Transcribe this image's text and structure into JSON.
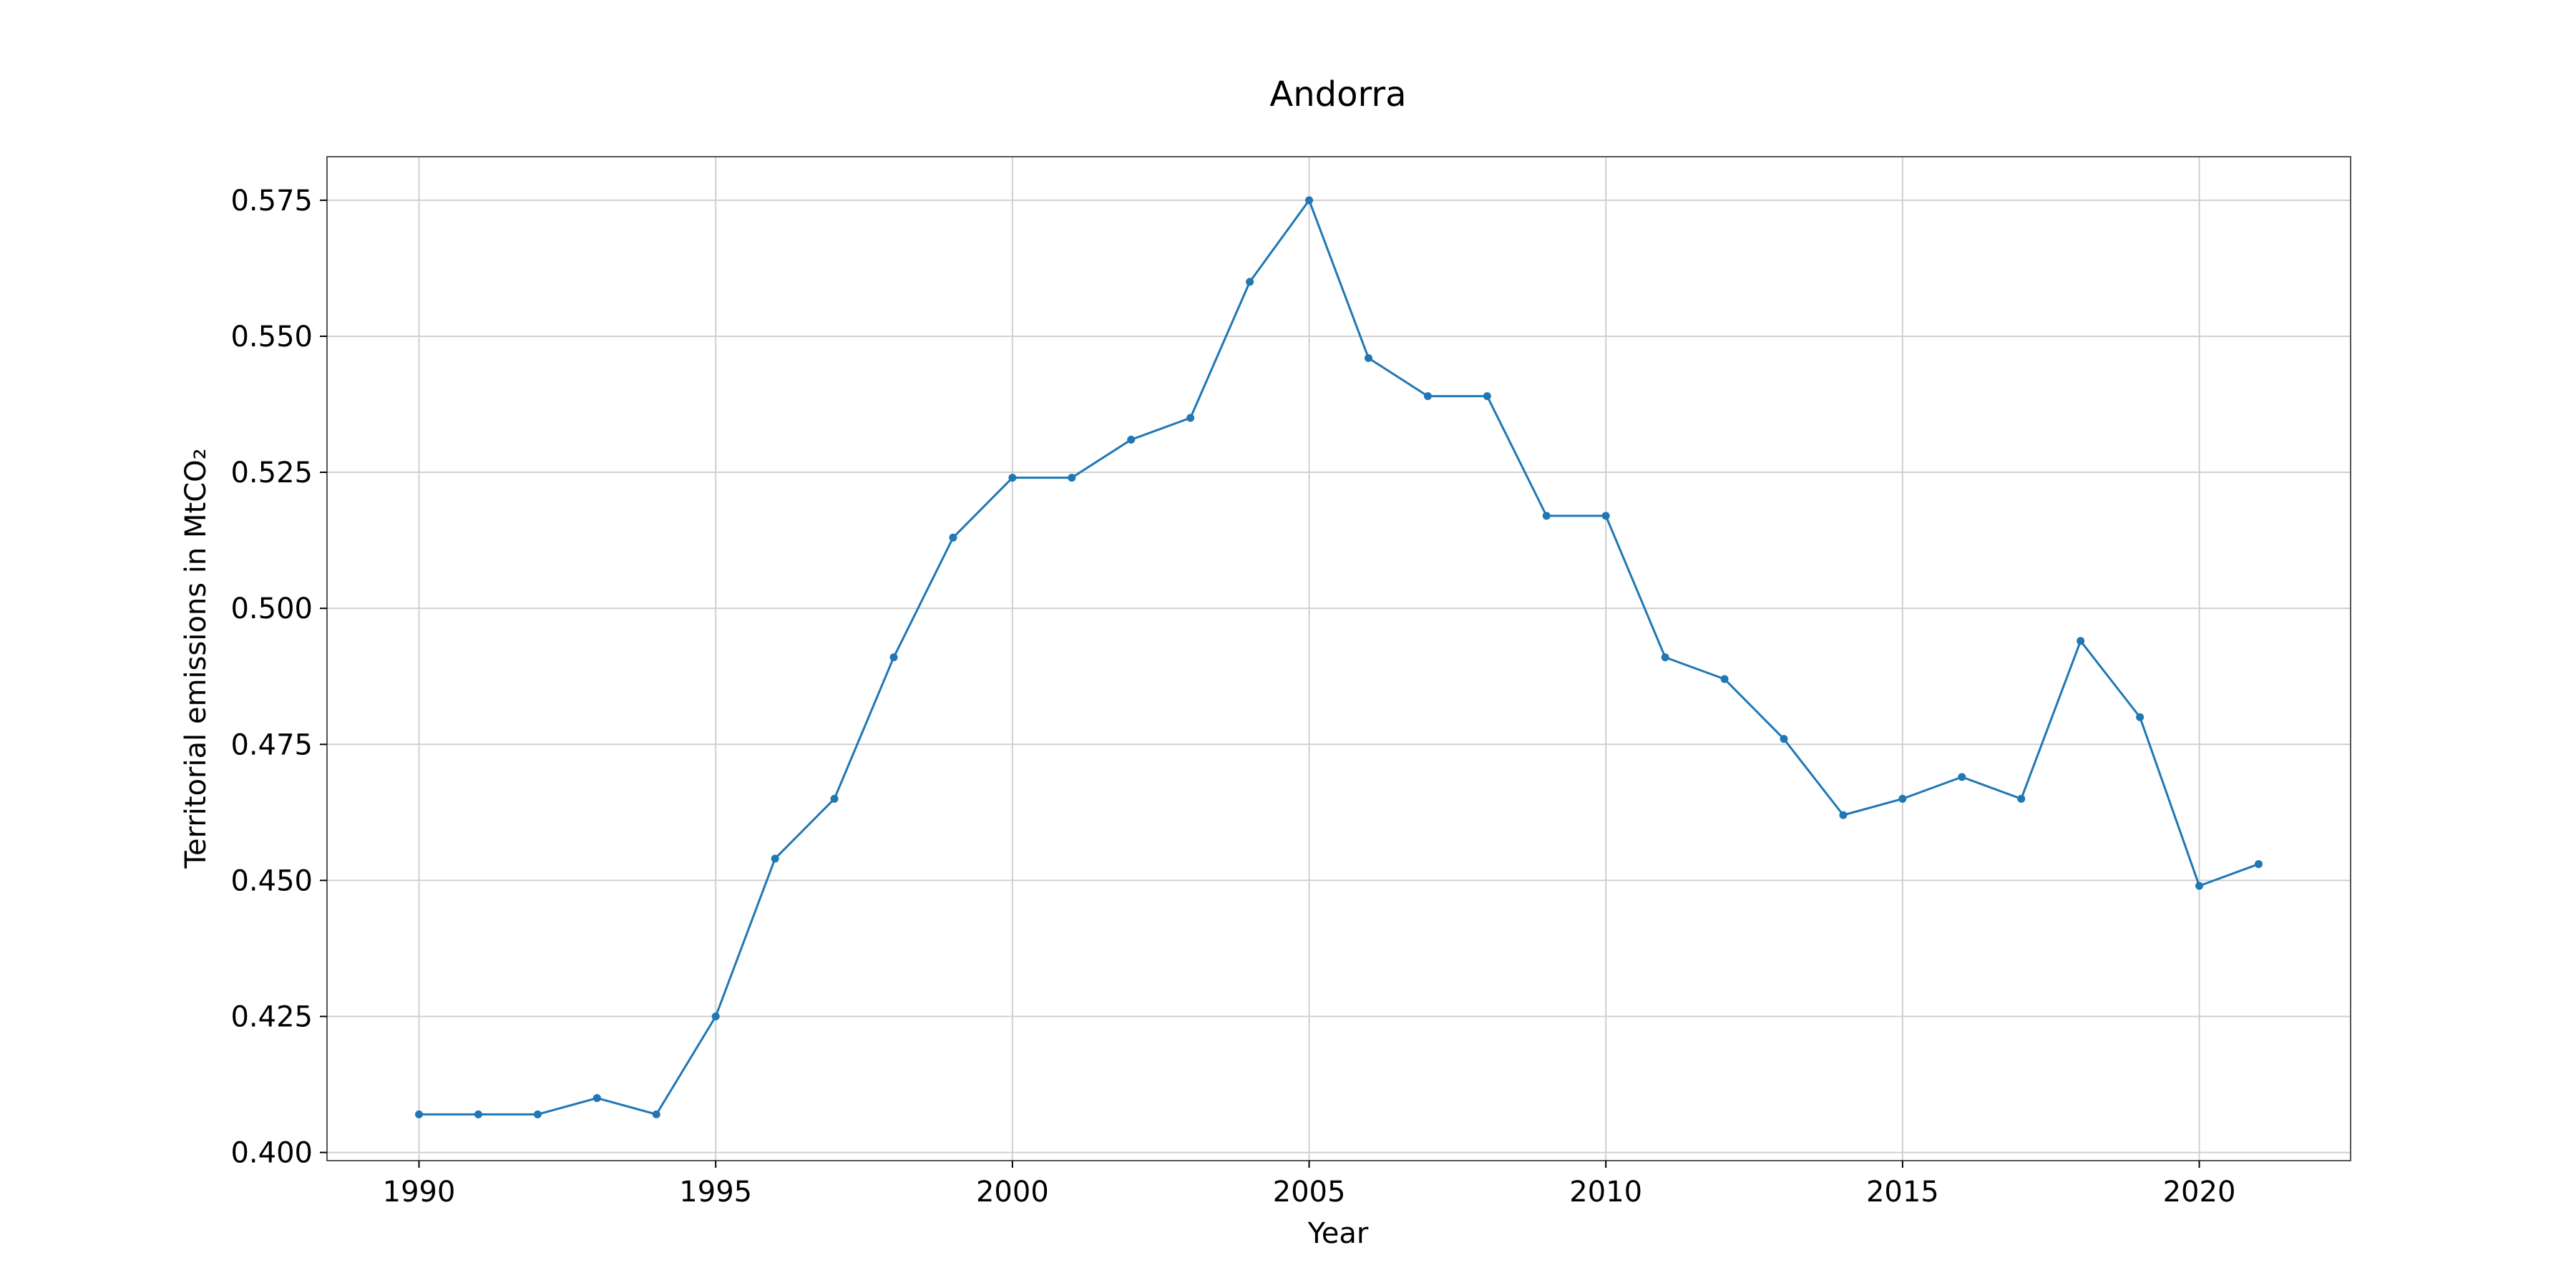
{
  "chart_data": {
    "type": "line",
    "title": "Andorra",
    "xlabel": "Year",
    "ylabel": "Territorial emissions in MtCO₂",
    "xlim": [
      1988.45,
      2022.55
    ],
    "ylim": [
      0.3985,
      0.583
    ],
    "xticks": [
      1990,
      1995,
      2000,
      2005,
      2010,
      2015,
      2020
    ],
    "yticks": [
      0.4,
      0.425,
      0.45,
      0.475,
      0.5,
      0.525,
      0.55,
      0.575
    ],
    "grid": true,
    "legend": "none",
    "color": "#1f77b4",
    "x": [
      1990,
      1991,
      1992,
      1993,
      1994,
      1995,
      1996,
      1997,
      1998,
      1999,
      2000,
      2001,
      2002,
      2003,
      2004,
      2005,
      2006,
      2007,
      2008,
      2009,
      2010,
      2011,
      2012,
      2013,
      2014,
      2015,
      2016,
      2017,
      2018,
      2019,
      2020,
      2021
    ],
    "series": [
      {
        "values": [
          0.407,
          0.407,
          0.407,
          0.41,
          0.407,
          0.425,
          0.454,
          0.465,
          0.491,
          0.513,
          0.524,
          0.524,
          0.531,
          0.535,
          0.56,
          0.575,
          0.546,
          0.539,
          0.539,
          0.517,
          0.517,
          0.491,
          0.487,
          0.476,
          0.462,
          0.465,
          0.469,
          0.465,
          0.494,
          0.48,
          0.449,
          0.453
        ]
      }
    ]
  }
}
